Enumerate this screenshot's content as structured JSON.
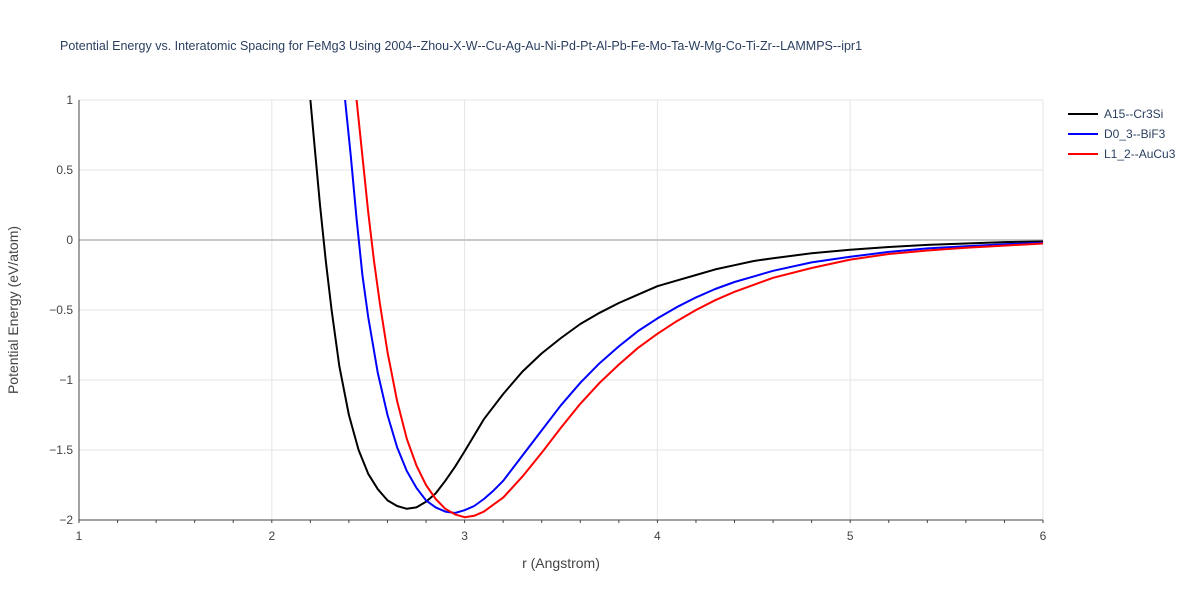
{
  "chart_data": {
    "type": "line",
    "title": "Potential Energy vs. Interatomic Spacing for FeMg3 Using 2004--Zhou-X-W--Cu-Ag-Au-Ni-Pd-Pt-Al-Pb-Fe-Mo-Ta-W-Mg-Co-Ti-Zr--LAMMPS--ipr1",
    "xlabel": "r (Angstrom)",
    "ylabel": "Potential Energy (eV/atom)",
    "xlim": [
      1,
      6
    ],
    "ylim": [
      -2,
      1
    ],
    "x_ticks": [
      1,
      2,
      3,
      4,
      5,
      6
    ],
    "x_tick_labels": [
      "1",
      "2",
      "3",
      "4",
      "5",
      "6"
    ],
    "y_ticks": [
      -2,
      -1.5,
      -1,
      -0.5,
      0,
      0.5,
      1
    ],
    "y_tick_labels": [
      "−2",
      "−1.5",
      "−1",
      "−0.5",
      "0",
      "0.5",
      "1"
    ],
    "grid": true,
    "legend_position": "top-right",
    "series": [
      {
        "name": "A15--Cr3Si",
        "color": "#000000",
        "points": [
          [
            2.2,
            1.0
          ],
          [
            2.22,
            0.7
          ],
          [
            2.25,
            0.25
          ],
          [
            2.28,
            -0.15
          ],
          [
            2.31,
            -0.5
          ],
          [
            2.35,
            -0.9
          ],
          [
            2.4,
            -1.25
          ],
          [
            2.45,
            -1.5
          ],
          [
            2.5,
            -1.67
          ],
          [
            2.55,
            -1.78
          ],
          [
            2.6,
            -1.86
          ],
          [
            2.65,
            -1.9
          ],
          [
            2.7,
            -1.92
          ],
          [
            2.75,
            -1.91
          ],
          [
            2.8,
            -1.87
          ],
          [
            2.85,
            -1.81
          ],
          [
            2.9,
            -1.72
          ],
          [
            2.95,
            -1.62
          ],
          [
            3.0,
            -1.51
          ],
          [
            3.1,
            -1.28
          ],
          [
            3.2,
            -1.1
          ],
          [
            3.3,
            -0.94
          ],
          [
            3.4,
            -0.81
          ],
          [
            3.5,
            -0.7
          ],
          [
            3.6,
            -0.6
          ],
          [
            3.7,
            -0.52
          ],
          [
            3.8,
            -0.45
          ],
          [
            3.9,
            -0.39
          ],
          [
            4.0,
            -0.33
          ],
          [
            4.1,
            -0.29
          ],
          [
            4.2,
            -0.25
          ],
          [
            4.3,
            -0.21
          ],
          [
            4.4,
            -0.18
          ],
          [
            4.5,
            -0.15
          ],
          [
            4.6,
            -0.13
          ],
          [
            4.8,
            -0.095
          ],
          [
            5.0,
            -0.07
          ],
          [
            5.2,
            -0.05
          ],
          [
            5.4,
            -0.035
          ],
          [
            5.6,
            -0.025
          ],
          [
            5.8,
            -0.015
          ],
          [
            6.0,
            -0.01
          ]
        ]
      },
      {
        "name": "D0_3--BiF3",
        "color": "#0000ff",
        "points": [
          [
            2.38,
            1.0
          ],
          [
            2.41,
            0.6
          ],
          [
            2.44,
            0.15
          ],
          [
            2.47,
            -0.25
          ],
          [
            2.5,
            -0.55
          ],
          [
            2.55,
            -0.95
          ],
          [
            2.6,
            -1.25
          ],
          [
            2.65,
            -1.48
          ],
          [
            2.7,
            -1.65
          ],
          [
            2.75,
            -1.77
          ],
          [
            2.8,
            -1.86
          ],
          [
            2.85,
            -1.91
          ],
          [
            2.9,
            -1.94
          ],
          [
            2.95,
            -1.95
          ],
          [
            3.0,
            -1.93
          ],
          [
            3.05,
            -1.9
          ],
          [
            3.1,
            -1.85
          ],
          [
            3.15,
            -1.79
          ],
          [
            3.2,
            -1.72
          ],
          [
            3.3,
            -1.54
          ],
          [
            3.4,
            -1.36
          ],
          [
            3.5,
            -1.18
          ],
          [
            3.6,
            -1.02
          ],
          [
            3.7,
            -0.88
          ],
          [
            3.8,
            -0.76
          ],
          [
            3.9,
            -0.65
          ],
          [
            4.0,
            -0.56
          ],
          [
            4.1,
            -0.48
          ],
          [
            4.2,
            -0.41
          ],
          [
            4.3,
            -0.35
          ],
          [
            4.4,
            -0.3
          ],
          [
            4.5,
            -0.26
          ],
          [
            4.6,
            -0.22
          ],
          [
            4.8,
            -0.16
          ],
          [
            5.0,
            -0.12
          ],
          [
            5.2,
            -0.085
          ],
          [
            5.4,
            -0.06
          ],
          [
            5.6,
            -0.045
          ],
          [
            5.8,
            -0.03
          ],
          [
            6.0,
            -0.02
          ]
        ]
      },
      {
        "name": "L1_2--AuCu3",
        "color": "#ff0000",
        "points": [
          [
            2.44,
            1.0
          ],
          [
            2.47,
            0.6
          ],
          [
            2.5,
            0.2
          ],
          [
            2.53,
            -0.15
          ],
          [
            2.56,
            -0.45
          ],
          [
            2.6,
            -0.8
          ],
          [
            2.65,
            -1.15
          ],
          [
            2.7,
            -1.42
          ],
          [
            2.75,
            -1.61
          ],
          [
            2.8,
            -1.75
          ],
          [
            2.85,
            -1.85
          ],
          [
            2.9,
            -1.92
          ],
          [
            2.95,
            -1.96
          ],
          [
            3.0,
            -1.98
          ],
          [
            3.05,
            -1.97
          ],
          [
            3.1,
            -1.94
          ],
          [
            3.15,
            -1.89
          ],
          [
            3.2,
            -1.84
          ],
          [
            3.3,
            -1.69
          ],
          [
            3.4,
            -1.52
          ],
          [
            3.5,
            -1.34
          ],
          [
            3.6,
            -1.17
          ],
          [
            3.7,
            -1.02
          ],
          [
            3.8,
            -0.89
          ],
          [
            3.9,
            -0.77
          ],
          [
            4.0,
            -0.67
          ],
          [
            4.1,
            -0.58
          ],
          [
            4.2,
            -0.5
          ],
          [
            4.3,
            -0.43
          ],
          [
            4.4,
            -0.37
          ],
          [
            4.5,
            -0.32
          ],
          [
            4.6,
            -0.27
          ],
          [
            4.8,
            -0.2
          ],
          [
            5.0,
            -0.14
          ],
          [
            5.2,
            -0.1
          ],
          [
            5.4,
            -0.075
          ],
          [
            5.6,
            -0.055
          ],
          [
            5.8,
            -0.04
          ],
          [
            6.0,
            -0.025
          ]
        ]
      }
    ]
  }
}
